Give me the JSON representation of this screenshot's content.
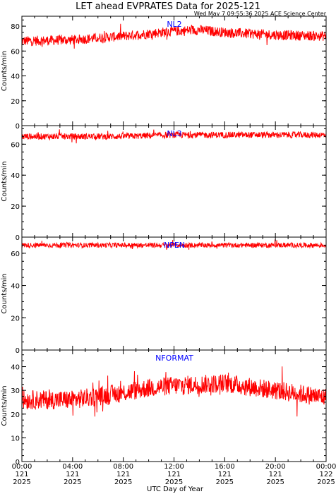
{
  "title": "LET ahead EVPRATES Data for 2025-121",
  "timestamp": "Wed May  7 09:55:36 2025 ACE Science Center",
  "xlabel": "UTC Day of Year",
  "x_ticks": [
    {
      "l1": "00:00",
      "l2": "121",
      "l3": "2025"
    },
    {
      "l1": "04:00",
      "l2": "121",
      "l3": "2025"
    },
    {
      "l1": "08:00",
      "l2": "121",
      "l3": "2025"
    },
    {
      "l1": "12:00",
      "l2": "121",
      "l3": "2025"
    },
    {
      "l1": "16:00",
      "l2": "121",
      "l3": "2025"
    },
    {
      "l1": "20:00",
      "l2": "121",
      "l3": "2025"
    },
    {
      "l1": "00:00",
      "l2": "122",
      "l3": "2025"
    }
  ],
  "colors": {
    "series": "#ff0000",
    "label": "#0000ff",
    "axis": "#000000"
  },
  "chart_data": [
    {
      "type": "line",
      "series_label": "NL2",
      "ylabel": "Counts/min",
      "ylim": [
        0,
        88
      ],
      "yticks": [
        0,
        20,
        40,
        60,
        80
      ],
      "xlim_hours": [
        0,
        24
      ],
      "profile": [
        [
          0,
          68
        ],
        [
          4,
          69
        ],
        [
          8,
          72
        ],
        [
          12,
          76
        ],
        [
          14,
          77
        ],
        [
          16,
          75
        ],
        [
          20,
          73
        ],
        [
          24,
          72
        ]
      ],
      "noise": 4
    },
    {
      "type": "line",
      "series_label": "NL3",
      "ylabel": "Counts/min",
      "ylim": [
        0,
        72
      ],
      "yticks": [
        0,
        20,
        40,
        60
      ],
      "xlim_hours": [
        0,
        24
      ],
      "profile": [
        [
          0,
          65
        ],
        [
          8,
          65
        ],
        [
          12,
          66
        ],
        [
          16,
          66
        ],
        [
          20,
          66
        ],
        [
          24,
          66
        ]
      ],
      "noise": 2
    },
    {
      "type": "line",
      "series_label": "NPEN",
      "ylabel": "Counts/min",
      "ylim": [
        0,
        70
      ],
      "yticks": [
        0,
        20,
        40,
        60
      ],
      "xlim_hours": [
        0,
        24
      ],
      "profile": [
        [
          0,
          65
        ],
        [
          12,
          65
        ],
        [
          24,
          65
        ]
      ],
      "noise": 1.5
    },
    {
      "type": "line",
      "series_label": "NFORMAT",
      "ylabel": "Counts/min",
      "ylim": [
        0,
        47
      ],
      "yticks": [
        0,
        10,
        20,
        30,
        40
      ],
      "xlim_hours": [
        0,
        24
      ],
      "profile": [
        [
          0,
          26
        ],
        [
          4,
          26
        ],
        [
          8,
          29
        ],
        [
          10,
          31
        ],
        [
          12,
          32
        ],
        [
          16,
          33
        ],
        [
          20,
          30
        ],
        [
          24,
          27
        ]
      ],
      "noise": 4
    }
  ]
}
